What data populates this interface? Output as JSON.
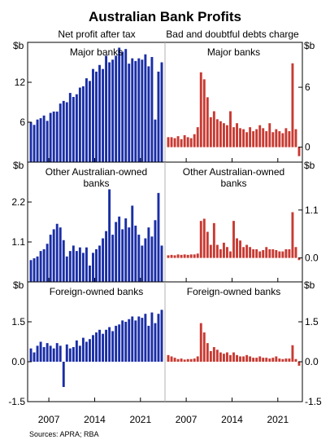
{
  "title": "Australian Bank Profits",
  "source": "Sources: APRA; RBA",
  "left_unit": "$b",
  "right_unit": "$b",
  "colors": {
    "left_series": "#1a2ea6",
    "right_series": "#c83a32",
    "border": "#000000",
    "divider": "#b0b0b0"
  },
  "chart_data": [
    {
      "type": "bar",
      "panel": "Major banks",
      "x_axis": {
        "start_year": 2004.25,
        "step_years": 0.5,
        "tick_labels": [
          "2007",
          "2014",
          "2021"
        ]
      },
      "left": {
        "series_label": "Net profit after tax",
        "label": "Major banks",
        "ylim": [
          0,
          18
        ],
        "ticks": [
          "6",
          "12"
        ],
        "values": [
          6.0,
          5.6,
          6.4,
          6.6,
          7.0,
          6.2,
          7.4,
          7.6,
          7.6,
          8.8,
          9.2,
          9.0,
          10.4,
          9.8,
          10.2,
          11.2,
          11.4,
          12.6,
          12.2,
          14.0,
          13.6,
          14.6,
          14.0,
          16.0,
          15.0,
          15.4,
          16.0,
          17.2,
          16.6,
          17.0,
          14.8,
          15.6,
          15.2,
          15.6,
          15.4,
          16.2,
          14.4,
          15.8,
          6.4,
          13.6,
          15.0
        ]
      },
      "right": {
        "series_label": "Bad and doubtful debts charge",
        "label": "Major banks",
        "ylim": [
          -1.5,
          10.5
        ],
        "ticks": [
          "0",
          "6"
        ],
        "values": [
          1.0,
          1.0,
          0.9,
          1.1,
          0.8,
          1.2,
          1.0,
          0.9,
          1.3,
          2.0,
          7.5,
          6.8,
          5.0,
          3.0,
          3.6,
          2.8,
          2.6,
          2.4,
          2.2,
          3.6,
          2.0,
          2.4,
          1.9,
          1.8,
          1.5,
          2.0,
          1.6,
          1.8,
          2.2,
          1.9,
          1.6,
          2.4,
          1.5,
          1.8,
          1.6,
          1.4,
          1.9,
          1.6,
          8.4,
          1.8,
          -0.9
        ]
      }
    },
    {
      "type": "bar",
      "panel": "Other Australian-owned banks",
      "x_axis": {
        "start_year": 2004.25,
        "step_years": 0.5,
        "tick_labels": [
          "2007",
          "2014",
          "2021"
        ]
      },
      "left": {
        "label": "Other Australian-owned banks",
        "ylim": [
          0,
          3.3
        ],
        "ticks": [
          "1.1",
          "2.2"
        ],
        "values": [
          0.6,
          0.65,
          0.7,
          0.85,
          0.9,
          1.05,
          1.3,
          1.45,
          1.6,
          1.5,
          1.15,
          0.7,
          0.85,
          1.0,
          0.85,
          0.95,
          0.8,
          0.95,
          0.45,
          0.8,
          0.9,
          1.0,
          1.2,
          1.4,
          2.55,
          1.3,
          1.65,
          1.8,
          1.45,
          1.75,
          1.5,
          2.1,
          1.55,
          1.3,
          1.0,
          1.2,
          1.5,
          1.25,
          1.7,
          2.45,
          1.0
        ]
      },
      "right": {
        "label": "Other Australian-owned banks",
        "ylim": [
          -0.55,
          2.2
        ],
        "ticks": [
          "0.0",
          "1.1"
        ],
        "values": [
          0.06,
          0.07,
          0.06,
          0.08,
          0.07,
          0.08,
          0.07,
          0.08,
          0.08,
          0.1,
          0.85,
          0.9,
          0.6,
          0.3,
          0.8,
          0.3,
          0.2,
          0.35,
          0.25,
          0.15,
          0.85,
          0.45,
          0.4,
          0.25,
          0.3,
          0.25,
          0.2,
          0.2,
          0.15,
          0.18,
          0.25,
          0.2,
          0.2,
          0.18,
          0.15,
          0.15,
          0.2,
          0.2,
          1.05,
          0.25,
          -0.05
        ]
      }
    },
    {
      "type": "bar",
      "panel": "Foreign-owned banks",
      "x_axis": {
        "start_year": 2004.25,
        "step_years": 0.5,
        "tick_labels": [
          "2007",
          "2014",
          "2021"
        ]
      },
      "left": {
        "label": "Foreign-owned banks",
        "ylim": [
          -1.5,
          3.0
        ],
        "ticks": [
          "-1.5",
          "0.0",
          "1.5"
        ],
        "values": [
          0.5,
          0.35,
          0.6,
          0.75,
          0.55,
          0.7,
          0.6,
          0.5,
          0.7,
          0.6,
          -0.95,
          0.65,
          0.5,
          0.55,
          0.8,
          0.6,
          0.9,
          0.75,
          0.85,
          1.0,
          1.1,
          1.2,
          1.05,
          1.2,
          1.3,
          1.15,
          1.35,
          1.4,
          1.55,
          1.5,
          1.6,
          1.7,
          1.55,
          1.7,
          1.65,
          1.8,
          1.35,
          1.85,
          1.45,
          1.8,
          1.95
        ]
      },
      "right": {
        "label": "Foreign-owned banks",
        "ylim": [
          -1.5,
          3.0
        ],
        "ticks": [
          "-1.5",
          "0.0",
          "1.5"
        ],
        "values": [
          0.25,
          0.2,
          0.15,
          0.1,
          0.12,
          0.08,
          0.1,
          0.1,
          0.12,
          0.2,
          1.45,
          1.1,
          0.7,
          0.4,
          0.55,
          0.45,
          0.35,
          0.3,
          0.35,
          0.25,
          0.35,
          0.25,
          0.2,
          0.2,
          0.25,
          0.2,
          0.15,
          0.15,
          0.2,
          0.15,
          0.15,
          0.12,
          0.15,
          0.2,
          0.12,
          0.1,
          0.12,
          0.12,
          0.62,
          0.1,
          -0.15
        ]
      }
    }
  ]
}
